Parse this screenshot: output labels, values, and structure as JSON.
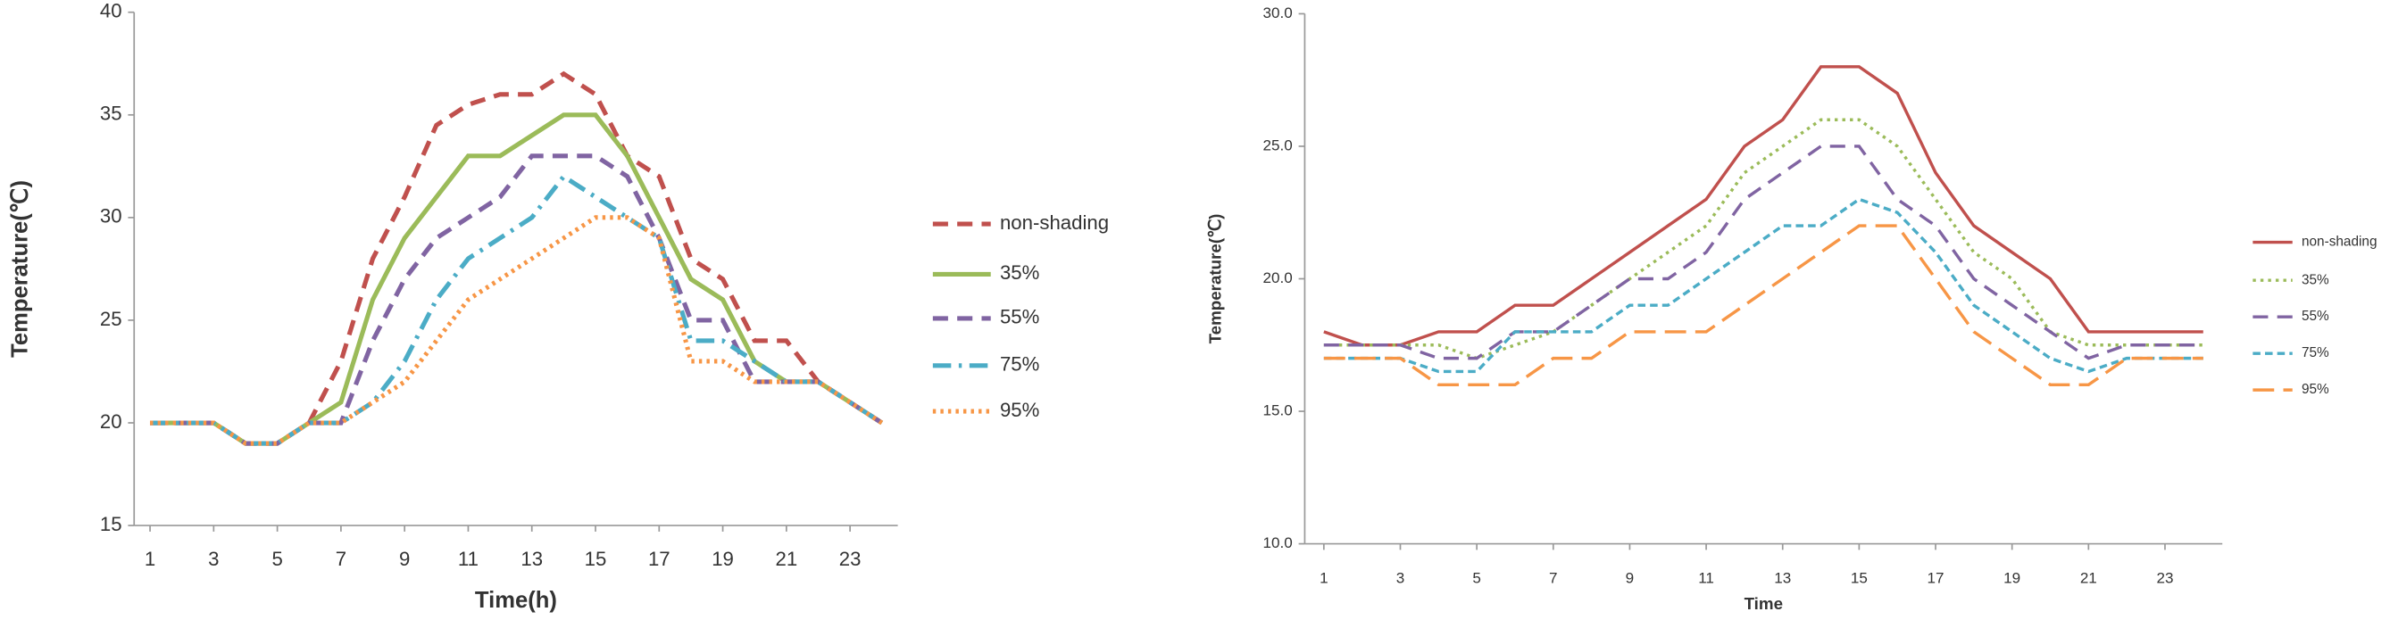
{
  "chart_data": [
    {
      "type": "line",
      "ylabel": "Temperature(℃)",
      "xlabel": "Time(h)",
      "x": [
        1,
        2,
        3,
        4,
        5,
        6,
        7,
        8,
        9,
        10,
        11,
        12,
        13,
        14,
        15,
        16,
        17,
        18,
        19,
        20,
        21,
        22,
        23,
        24
      ],
      "xlim": [
        0.5,
        24.5
      ],
      "xticks": [
        1,
        3,
        5,
        7,
        9,
        11,
        13,
        15,
        17,
        19,
        21,
        23
      ],
      "ylim": [
        15,
        40
      ],
      "yticks": [
        15,
        20,
        25,
        30,
        35,
        40
      ],
      "series": [
        {
          "name": "non-shading",
          "color": "#c0504d",
          "dash": "dashed",
          "values": [
            20,
            20,
            20,
            19,
            19,
            20,
            23,
            28,
            31,
            34.5,
            35.5,
            36,
            36,
            37,
            36,
            33,
            32,
            28,
            27,
            24,
            24,
            22,
            21,
            20
          ]
        },
        {
          "name": "35%",
          "color": "#9bbb59",
          "dash": "solid",
          "values": [
            20,
            20,
            20,
            19,
            19,
            20,
            21,
            26,
            29,
            31,
            33,
            33,
            34,
            35,
            35,
            33,
            30,
            27,
            26,
            23,
            22,
            22,
            21,
            20
          ]
        },
        {
          "name": "55%",
          "color": "#8064a2",
          "dash": "dashed",
          "values": [
            20,
            20,
            20,
            19,
            19,
            20,
            20,
            24,
            27,
            29,
            30,
            31,
            33,
            33,
            33,
            32,
            29,
            25,
            25,
            22,
            22,
            22,
            21,
            20
          ]
        },
        {
          "name": "75%",
          "color": "#4bacc6",
          "dash": "dashdot",
          "values": [
            20,
            20,
            20,
            19,
            19,
            20,
            20,
            21,
            23,
            26,
            28,
            29,
            30,
            32,
            31,
            30,
            29,
            24,
            24,
            23,
            22,
            22,
            21,
            20
          ]
        },
        {
          "name": "95%",
          "color": "#f79646",
          "dash": "dotted",
          "values": [
            20,
            20,
            20,
            19,
            19,
            20,
            20,
            21,
            22,
            24,
            26,
            27,
            28,
            29,
            30,
            30,
            29,
            23,
            23,
            22,
            22,
            22,
            21,
            20
          ]
        }
      ]
    },
    {
      "type": "line",
      "ylabel": "Temperature(℃)",
      "xlabel": "Time",
      "x": [
        1,
        2,
        3,
        4,
        5,
        6,
        7,
        8,
        9,
        10,
        11,
        12,
        13,
        14,
        15,
        16,
        17,
        18,
        19,
        20,
        21,
        22,
        23,
        24
      ],
      "xlim": [
        0.5,
        24.5
      ],
      "xticks": [
        1,
        3,
        5,
        7,
        9,
        11,
        13,
        15,
        17,
        19,
        21,
        23
      ],
      "ylim": [
        10,
        30
      ],
      "yticks": [
        {
          "value": 10,
          "label": "10.0"
        },
        {
          "value": 15,
          "label": "15.0"
        },
        {
          "value": 20,
          "label": "20.0"
        },
        {
          "value": 25,
          "label": "25.0"
        },
        {
          "value": 30,
          "label": "30.0"
        }
      ],
      "series": [
        {
          "name": "non-shading",
          "color": "#c0504d",
          "dash": "solid",
          "values": [
            18,
            17.5,
            17.5,
            18,
            18,
            19,
            19,
            20,
            21,
            22,
            23,
            25,
            26,
            28,
            28,
            27,
            24,
            22,
            21,
            20,
            18,
            18,
            18,
            18
          ]
        },
        {
          "name": "35%",
          "color": "#9bbb59",
          "dash": "dotted",
          "values": [
            17.5,
            17.5,
            17.5,
            17.5,
            17,
            17.5,
            18,
            19,
            20,
            21,
            22,
            24,
            25,
            26,
            26,
            25,
            23,
            21,
            20,
            18,
            17.5,
            17.5,
            17.5,
            17.5
          ]
        },
        {
          "name": "55%",
          "color": "#8064a2",
          "dash": "dashed",
          "values": [
            17.5,
            17.5,
            17.5,
            17,
            17,
            18,
            18,
            19,
            20,
            20,
            21,
            23,
            24,
            25,
            25,
            23,
            22,
            20,
            19,
            18,
            17,
            17.5,
            17.5,
            17.5
          ]
        },
        {
          "name": "75%",
          "color": "#4bacc6",
          "dash": "shortdash",
          "values": [
            17,
            17,
            17,
            16.5,
            16.5,
            18,
            18,
            18,
            19,
            19,
            20,
            21,
            22,
            22,
            23,
            22.5,
            21,
            19,
            18,
            17,
            16.5,
            17,
            17,
            17
          ]
        },
        {
          "name": "95%",
          "color": "#f79646",
          "dash": "longdash",
          "values": [
            17,
            17,
            17,
            16,
            16,
            16,
            17,
            17,
            18,
            18,
            18,
            19,
            20,
            21,
            22,
            22,
            20,
            18,
            17,
            16,
            16,
            17,
            17,
            17
          ]
        }
      ]
    }
  ]
}
